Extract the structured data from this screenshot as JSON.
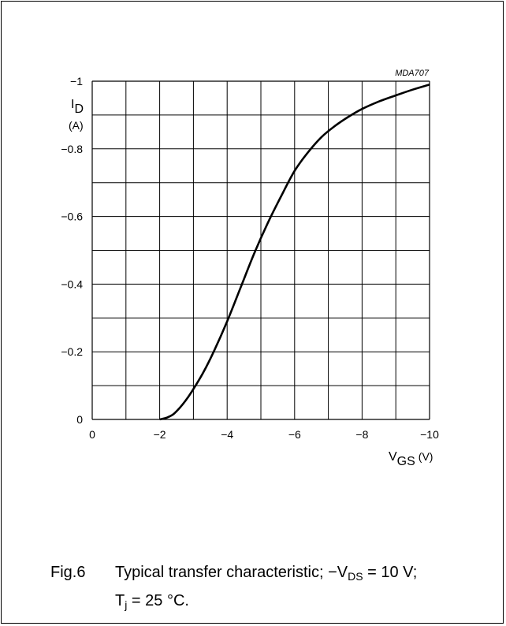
{
  "chart_data": {
    "type": "line",
    "code": "MDA707",
    "ylabel": {
      "symbol": "I",
      "subscript": "D",
      "unit": "(A)"
    },
    "xlabel": {
      "symbol": "V",
      "subscript": "GS",
      "unit": "(V)"
    },
    "xlim": [
      0,
      -10
    ],
    "ylim": [
      0,
      -1
    ],
    "x_ticks": [
      "0",
      "−2",
      "−4",
      "−6",
      "−8",
      "−10"
    ],
    "y_ticks": [
      "0",
      "−0.2",
      "−0.4",
      "−0.6",
      "−0.8",
      "−1"
    ],
    "grid": true,
    "series": [
      {
        "x": [
          -2.0,
          -2.2,
          -2.4,
          -2.6,
          -2.8,
          -3.0,
          -3.3,
          -3.6,
          -4.0,
          -4.4,
          -4.8,
          -5.2,
          -5.6,
          -6.0,
          -6.4,
          -6.8,
          -7.2,
          -7.6,
          -8.0,
          -8.5,
          -9.0,
          -9.5,
          -10.0
        ],
        "y": [
          0.0,
          -0.005,
          -0.015,
          -0.035,
          -0.06,
          -0.09,
          -0.14,
          -0.2,
          -0.29,
          -0.39,
          -0.49,
          -0.58,
          -0.66,
          -0.735,
          -0.79,
          -0.835,
          -0.868,
          -0.895,
          -0.918,
          -0.94,
          -0.958,
          -0.975,
          -0.99
        ]
      }
    ]
  },
  "caption": {
    "fig_label": "Fig.6",
    "text_a": "Typical transfer characteristic; −V",
    "sub_a": "DS",
    "text_b": " = 10 V;",
    "text_c": "T",
    "sub_c": "j",
    "text_d": " = 25 °C."
  }
}
